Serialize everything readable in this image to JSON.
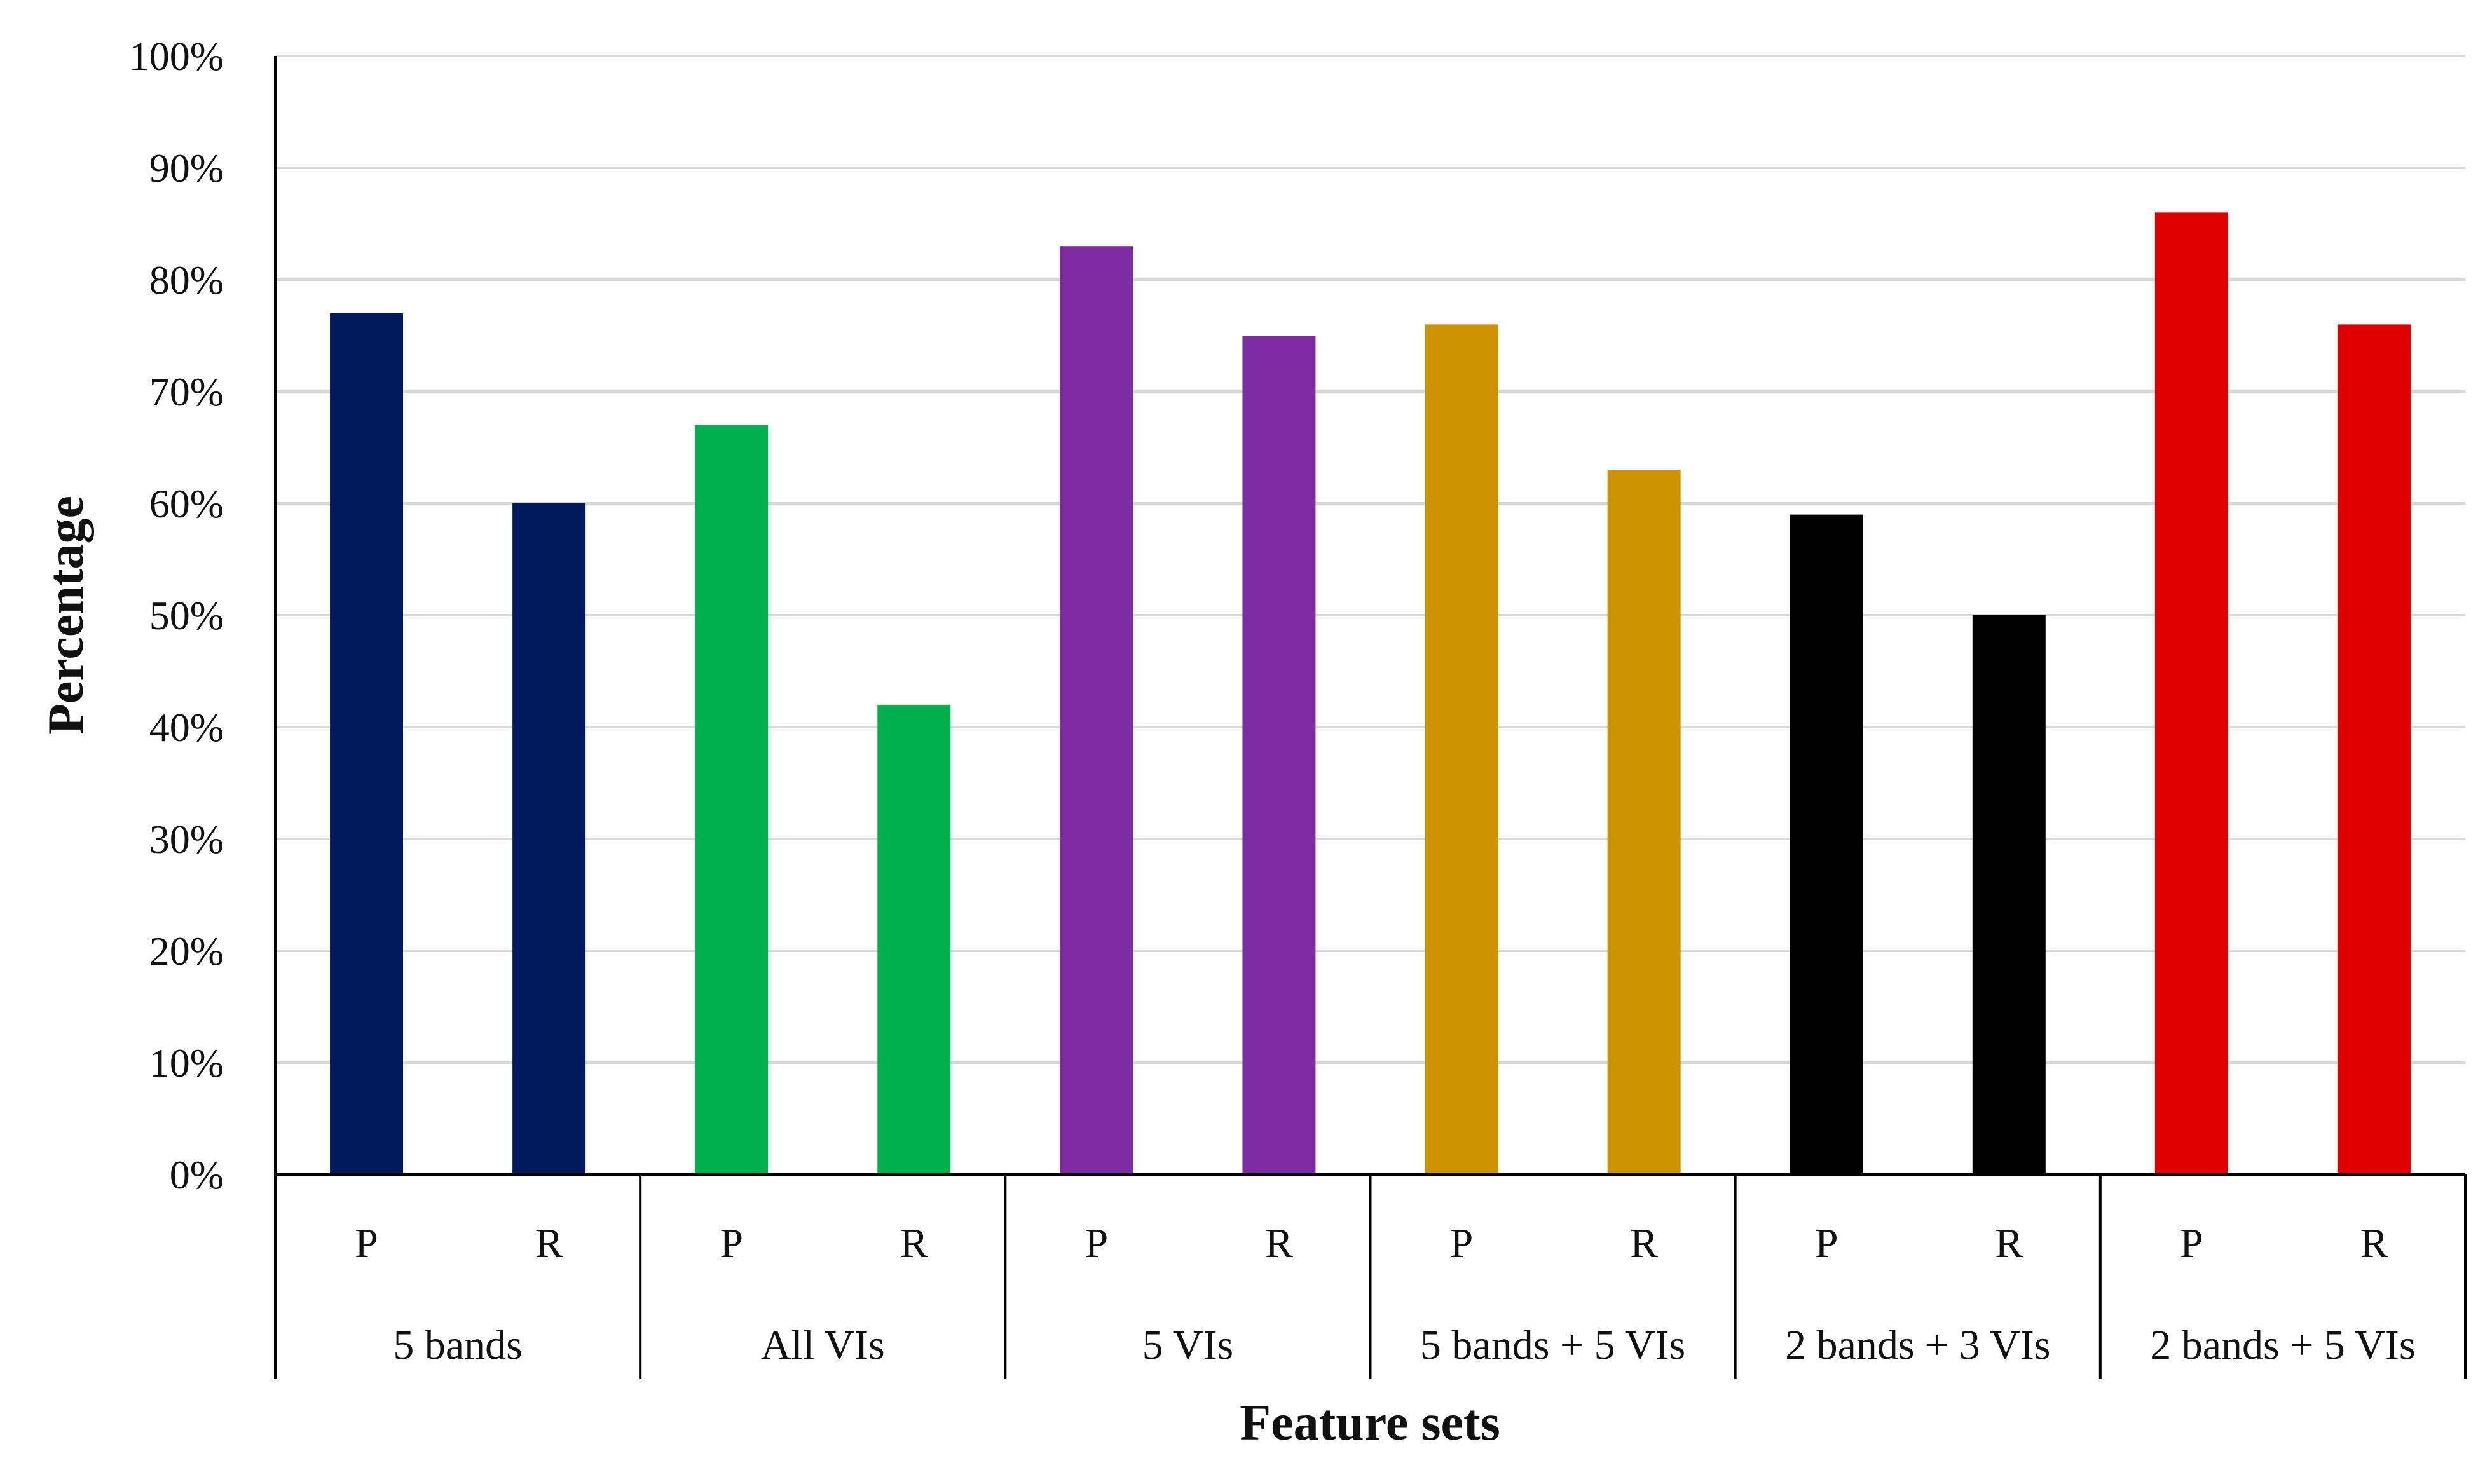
{
  "chart_data": {
    "type": "bar",
    "ylabel": "Percentage",
    "xlabel": "Feature sets",
    "ylim": [
      0,
      100
    ],
    "yticks": [
      "0%",
      "10%",
      "20%",
      "30%",
      "40%",
      "50%",
      "60%",
      "70%",
      "80%",
      "90%",
      "100%"
    ],
    "grid": true,
    "legend": "none",
    "groups": [
      {
        "name": "5 bands",
        "color": "#001a5e",
        "bars": [
          {
            "label": "P",
            "value": 77
          },
          {
            "label": "R",
            "value": 60
          }
        ]
      },
      {
        "name": "All VIs",
        "color": "#00b04f",
        "bars": [
          {
            "label": "P",
            "value": 67
          },
          {
            "label": "R",
            "value": 42
          }
        ]
      },
      {
        "name": "5 VIs",
        "color": "#7d2ba0",
        "bars": [
          {
            "label": "P",
            "value": 83
          },
          {
            "label": "R",
            "value": 75
          }
        ]
      },
      {
        "name": "5 bands + 5 VIs",
        "color": "#cc9200",
        "bars": [
          {
            "label": "P",
            "value": 76
          },
          {
            "label": "R",
            "value": 63
          }
        ]
      },
      {
        "name": "2 bands + 3 VIs",
        "color": "#000000",
        "bars": [
          {
            "label": "P",
            "value": 59
          },
          {
            "label": "R",
            "value": 50
          }
        ]
      },
      {
        "name": "2 bands + 5 VIs",
        "color": "#e00000",
        "bars": [
          {
            "label": "P",
            "value": 86
          },
          {
            "label": "R",
            "value": 76
          }
        ]
      }
    ]
  }
}
